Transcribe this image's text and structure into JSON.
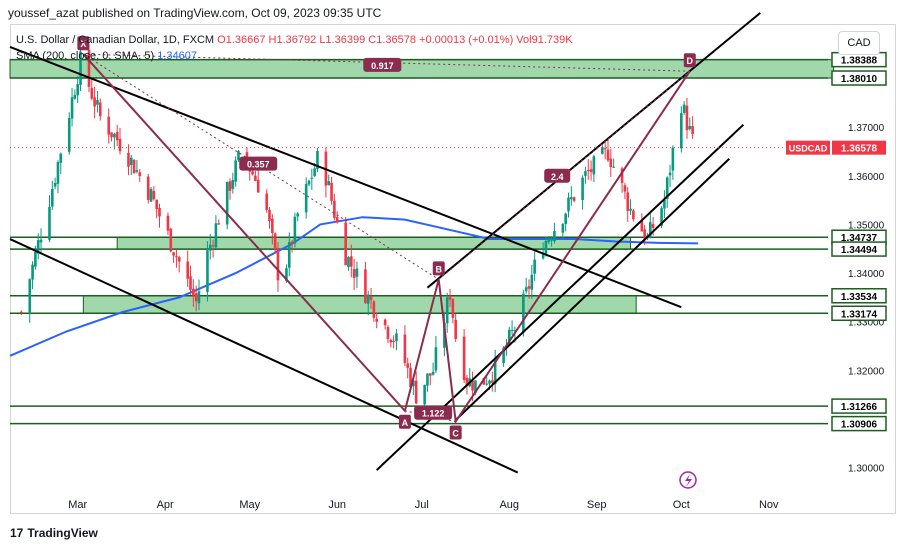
{
  "header": {
    "published": "youssef_azat published on TradingView.com, Oct 09, 2023 09:35 UTC"
  },
  "legend": {
    "symbol": "U.S. Dollar / Canadian Dollar, 1D, FXCM",
    "open": "O1.36667",
    "high": "H1.36792",
    "low": "L1.36399",
    "close": "C1.36578",
    "change": "+0.00013 (+0.01%)",
    "volume": "Vol91.739K",
    "sma_label": "SMA (200, close, 0, SMA, 5)",
    "sma_value": "1.34607"
  },
  "currency_button": "CAD",
  "footer": {
    "brand": "TradingView"
  },
  "colors": {
    "up": "#089981",
    "down": "#f23645",
    "zone": "#8fd19e",
    "sma": "#2962ff",
    "pattern": "#8b2c4e",
    "hline": "#1b5e20"
  },
  "chart_data": {
    "type": "line",
    "title": "U.S. Dollar / Canadian Dollar, 1D, FXCM",
    "price_ticks": [
      "1.37000",
      "1.36000",
      "1.35000",
      "1.34000",
      "1.33000",
      "1.32000",
      "1.30000"
    ],
    "ylim": [
      1.295,
      1.391
    ],
    "x_ticks": [
      {
        "label": "Mar",
        "day": 24
      },
      {
        "label": "Apr",
        "day": 55
      },
      {
        "label": "May",
        "day": 85
      },
      {
        "label": "Jun",
        "day": 116
      },
      {
        "label": "Jul",
        "day": 146
      },
      {
        "label": "Aug",
        "day": 177
      },
      {
        "label": "Sep",
        "day": 208
      },
      {
        "label": "Oct",
        "day": 238
      },
      {
        "label": "Nov",
        "day": 269
      }
    ],
    "xlim": [
      0,
      290
    ],
    "price_path": [
      [
        4,
        1.332
      ],
      [
        16,
        1.36
      ],
      [
        25,
        1.3835
      ],
      [
        32,
        1.372
      ],
      [
        40,
        1.366
      ],
      [
        50,
        1.356
      ],
      [
        58,
        1.345
      ],
      [
        66,
        1.334
      ],
      [
        70,
        1.344
      ],
      [
        76,
        1.355
      ],
      [
        82,
        1.365
      ],
      [
        90,
        1.356
      ],
      [
        96,
        1.337
      ],
      [
        102,
        1.352
      ],
      [
        110,
        1.365
      ],
      [
        118,
        1.345
      ],
      [
        126,
        1.336
      ],
      [
        132,
        1.33
      ],
      [
        138,
        1.325
      ],
      [
        144,
        1.315
      ],
      [
        150,
        1.32
      ],
      [
        156,
        1.336
      ],
      [
        158,
        1.327
      ],
      [
        162,
        1.318
      ],
      [
        166,
        1.317
      ],
      [
        172,
        1.32
      ],
      [
        180,
        1.33
      ],
      [
        188,
        1.345
      ],
      [
        196,
        1.352
      ],
      [
        204,
        1.36
      ],
      [
        212,
        1.365
      ],
      [
        220,
        1.353
      ],
      [
        226,
        1.347
      ],
      [
        232,
        1.355
      ],
      [
        238,
        1.375
      ],
      [
        242,
        1.367
      ]
    ],
    "sma_200": [
      [
        0,
        1.323
      ],
      [
        20,
        1.328
      ],
      [
        40,
        1.332
      ],
      [
        60,
        1.335
      ],
      [
        80,
        1.34
      ],
      [
        100,
        1.346
      ],
      [
        110,
        1.35
      ],
      [
        125,
        1.3515
      ],
      [
        140,
        1.351
      ],
      [
        155,
        1.349
      ],
      [
        170,
        1.347
      ],
      [
        185,
        1.347
      ],
      [
        200,
        1.347
      ],
      [
        215,
        1.3465
      ],
      [
        230,
        1.3462
      ],
      [
        244,
        1.3461
      ]
    ],
    "horizontal_levels": [
      "1.38388",
      "1.38010",
      "1.34737",
      "1.34494",
      "1.33534",
      "1.33174",
      "1.31266",
      "1.30906"
    ],
    "zones": [
      {
        "from": 1.3801,
        "to": 1.38388,
        "x_start": 0,
        "x_end": 292
      },
      {
        "from": 1.34494,
        "to": 1.34737,
        "x_start": 38,
        "x_end": 220
      },
      {
        "from": 1.33174,
        "to": 1.33534,
        "x_start": 26,
        "x_end": 222
      }
    ],
    "current_price": {
      "symbol": "USDCAD",
      "value": "1.36578"
    },
    "pattern_points": [
      {
        "label": "X",
        "day": 26,
        "price": 1.385
      },
      {
        "label": "A",
        "day": 140,
        "price": 1.3117
      },
      {
        "label": "B",
        "day": 152,
        "price": 1.3387
      },
      {
        "label": "C",
        "day": 158,
        "price": 1.3095
      },
      {
        "label": "D",
        "day": 241,
        "price": 1.3815
      }
    ],
    "ratios": [
      {
        "label": "0.917",
        "day": 132,
        "price": 1.3828
      },
      {
        "label": "0.357",
        "day": 88,
        "price": 1.3625
      },
      {
        "label": "2.4",
        "day": 194,
        "price": 1.36
      },
      {
        "label": "1.122",
        "day": 150,
        "price": 1.3113
      }
    ]
  }
}
